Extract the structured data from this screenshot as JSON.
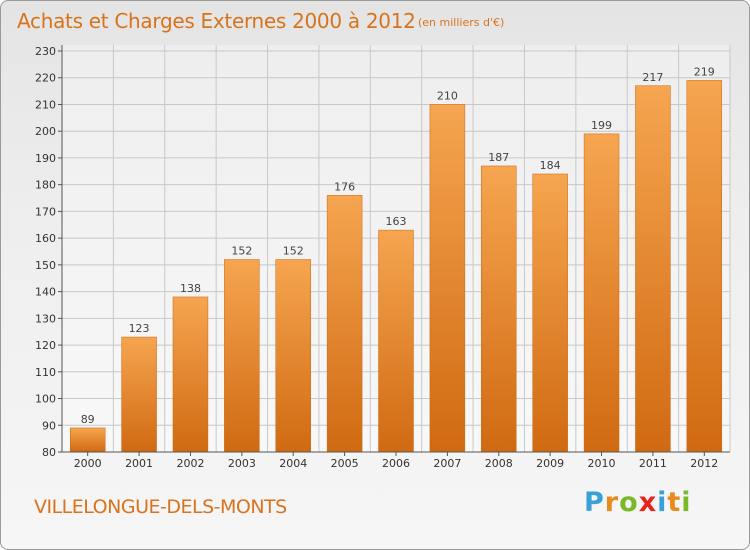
{
  "header": {
    "title": "Achats et Charges Externes 2000 à 2012",
    "subtitle": "(en milliers d'€)"
  },
  "footer": {
    "commune": "VILLELONGUE-DELS-MONTS",
    "logo": {
      "letters": [
        "P",
        "r",
        "o",
        "x",
        "i",
        "t",
        "i"
      ],
      "colors": [
        "#3aa0d8",
        "#e88a1c",
        "#7cb928",
        "#e8231c",
        "#3aa0d8",
        "#e88a1c",
        "#7cb928"
      ]
    }
  },
  "colors": {
    "accent": "#d8731c",
    "bar_top": "#f6a550",
    "bar_bottom": "#d06a12",
    "grid": "#c8c8c8"
  },
  "chart_data": {
    "type": "bar",
    "categories": [
      "2000",
      "2001",
      "2002",
      "2003",
      "2004",
      "2005",
      "2006",
      "2007",
      "2008",
      "2009",
      "2010",
      "2011",
      "2012"
    ],
    "values": [
      89,
      123,
      138,
      152,
      152,
      176,
      163,
      210,
      187,
      184,
      199,
      217,
      219
    ],
    "title": "Achats et Charges Externes 2000 à 2012",
    "subtitle": "(en milliers d'€)",
    "xlabel": "",
    "ylabel": "",
    "ylim": [
      80,
      230
    ],
    "yticks": [
      80,
      90,
      100,
      110,
      120,
      130,
      140,
      150,
      160,
      170,
      180,
      190,
      200,
      210,
      220,
      230
    ],
    "grid": true,
    "data_labels": true
  }
}
